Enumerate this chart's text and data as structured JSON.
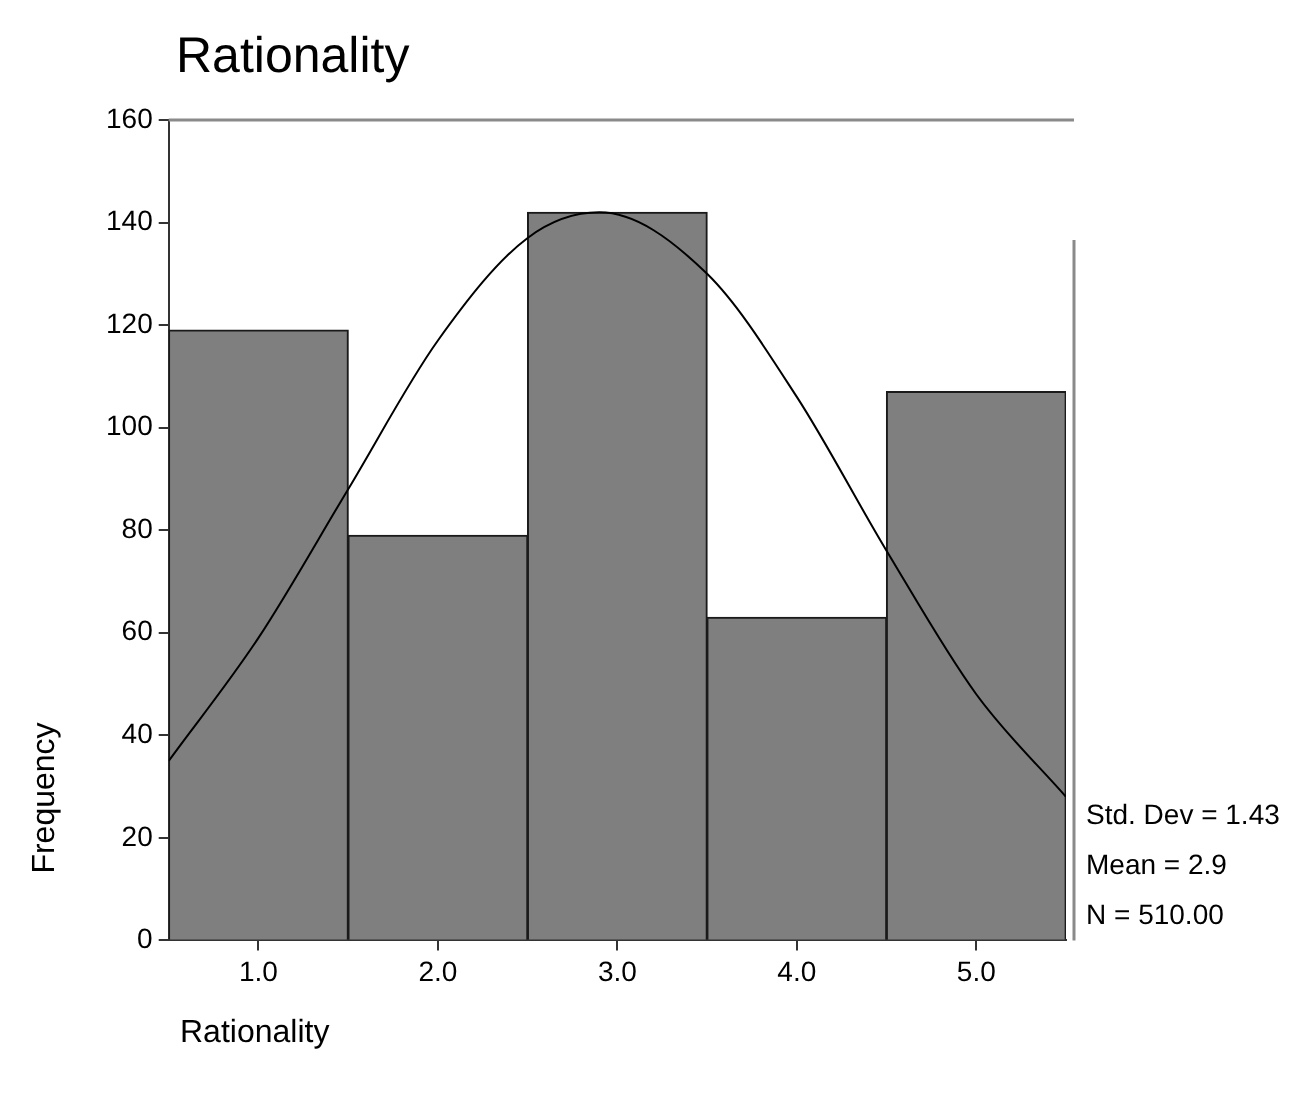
{
  "chart_data": {
    "type": "histogram",
    "title": "Rationality",
    "xlabel": "Rationality",
    "ylabel": "Frequency",
    "bins": [
      0.5,
      1.5,
      2.5,
      3.5,
      4.5,
      5.5
    ],
    "values": [
      119,
      79,
      142,
      63,
      107
    ],
    "color": "#7f7f7f",
    "series": [
      {
        "type": "line",
        "color": "#000000",
        "x": [
          0.5,
          1.0,
          1.5,
          2.0,
          2.5,
          2.9,
          3.5,
          4.0,
          4.5,
          5.0,
          5.5
        ],
        "values": [
          35,
          59,
          88,
          117,
          137,
          142,
          130,
          106,
          76,
          48,
          28
        ]
      }
    ],
    "xlim": [
      0.5,
      5.5
    ],
    "xticks": [
      {
        "value": 1,
        "label": "1.0"
      },
      {
        "value": 2,
        "label": "2.0"
      },
      {
        "value": 3,
        "label": "3.0"
      },
      {
        "value": 4,
        "label": "4.0"
      },
      {
        "value": 5,
        "label": "5.0"
      }
    ],
    "ylim": [
      0,
      160
    ],
    "yticks": [
      0,
      20,
      40,
      60,
      80,
      100,
      120,
      140,
      160
    ],
    "grid": false,
    "legend": false,
    "marker": "none",
    "line_style": "solid",
    "annotations": [
      "Std. Dev = 1.43",
      "Mean = 2.9",
      "N = 510.00"
    ]
  }
}
